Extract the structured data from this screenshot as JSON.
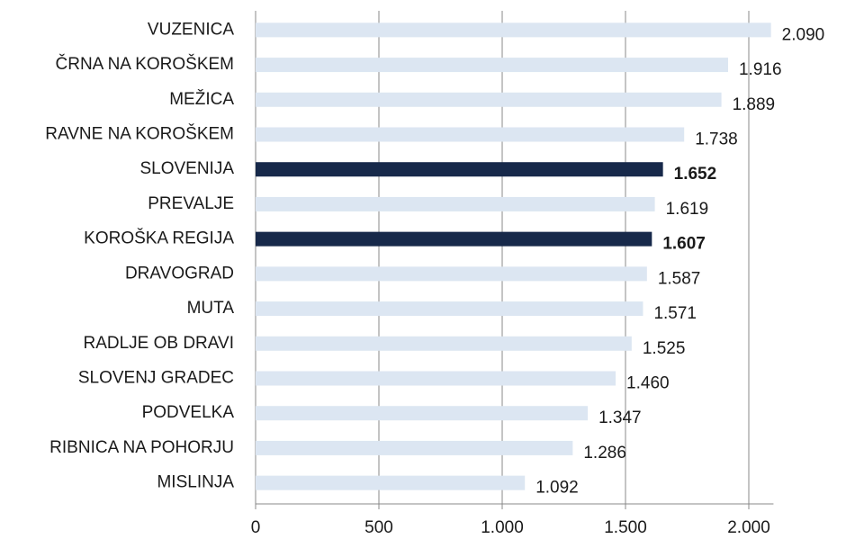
{
  "chart_data": {
    "type": "bar",
    "orientation": "horizontal",
    "categories": [
      "VUZENICA",
      "ČRNA NA KOROŠKEM",
      "MEŽICA",
      "RAVNE NA KOROŠKEM",
      "SLOVENIJA",
      "PREVALJE",
      "KOROŠKA REGIJA",
      "DRAVOGRAD",
      "MUTA",
      "RADLJE OB DRAVI",
      "SLOVENJ GRADEC",
      "PODVELKA",
      "RIBNICA NA POHORJU",
      "MISLINJA"
    ],
    "values": [
      2090,
      1916,
      1889,
      1738,
      1652,
      1619,
      1607,
      1587,
      1571,
      1525,
      1460,
      1347,
      1286,
      1092
    ],
    "value_labels": [
      "2.090",
      "1.916",
      "1.889",
      "1.738",
      "1.652",
      "1.619",
      "1.607",
      "1.587",
      "1.571",
      "1.525",
      "1.460",
      "1.347",
      "1.286",
      "1.092"
    ],
    "colors": [
      "#dce6f2",
      "#dce6f2",
      "#dce6f2",
      "#dce6f2",
      "#17294a",
      "#dce6f2",
      "#17294a",
      "#dce6f2",
      "#dce6f2",
      "#dce6f2",
      "#dce6f2",
      "#dce6f2",
      "#dce6f2",
      "#dce6f2"
    ],
    "bold": [
      false,
      false,
      false,
      false,
      true,
      false,
      true,
      false,
      false,
      false,
      false,
      false,
      false,
      false
    ],
    "xlim": [
      0,
      2100
    ],
    "xticks": [
      0,
      500,
      {
        "value": 1000,
        "label": "1.000"
      },
      {
        "value": 1500,
        "label": "1.500"
      },
      {
        "value": 2000,
        "label": "2.000"
      }
    ],
    "grid": true
  }
}
